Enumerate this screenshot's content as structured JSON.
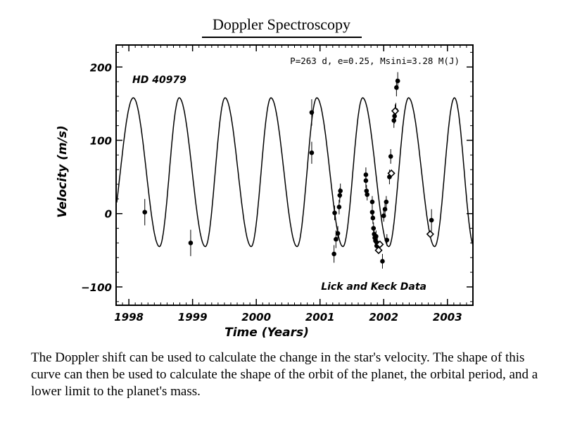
{
  "page": {
    "title": "Doppler Spectroscopy",
    "caption": "The Doppler shift can be used to calculate the change in the star's velocity. The shape of this curve can then be used to calculate the shape of the orbit of the planet, the orbital period, and a lower limit to the planet's mass."
  },
  "chart_data": {
    "type": "scatter",
    "star_label": "HD 40979",
    "fit_label": "P=263 d, e=0.25, Msini=3.28 M(J)",
    "data_source_label": "Lick and Keck Data",
    "xlabel": "Time (Years)",
    "ylabel": "Velocity (m/s)",
    "xlim": [
      1997.8,
      2003.4
    ],
    "ylim": [
      -125,
      230
    ],
    "x_ticks": [
      1998,
      1999,
      2000,
      2001,
      2002,
      2003
    ],
    "y_ticks": [
      -100,
      0,
      100,
      200
    ],
    "y_tick_labels": [
      "−100",
      "0",
      "100",
      "200"
    ],
    "model_curve": {
      "peaks": [
        1998.07,
        1998.79,
        1999.51,
        2000.23,
        2000.95,
        2001.67,
        2002.39,
        2003.11
      ],
      "troughs": [
        1998.48,
        1999.2,
        1999.92,
        2000.64,
        2001.36,
        2002.08,
        2002.8
      ],
      "peak_velocity": 158,
      "trough_velocity": -45
    },
    "series": [
      {
        "marker": "filled-circle",
        "points": [
          {
            "x": 1998.25,
            "y": 2,
            "err": 18
          },
          {
            "x": 1998.97,
            "y": -40,
            "err": 18
          },
          {
            "x": 2000.87,
            "y": 138,
            "err": 18
          },
          {
            "x": 2000.87,
            "y": 83,
            "err": 15
          },
          {
            "x": 2001.22,
            "y": -55,
            "err": 12
          },
          {
            "x": 2001.23,
            "y": 1,
            "err": 10
          },
          {
            "x": 2001.25,
            "y": -35,
            "err": 12
          },
          {
            "x": 2001.28,
            "y": -27,
            "err": 10
          },
          {
            "x": 2001.3,
            "y": 9,
            "err": 10
          },
          {
            "x": 2001.31,
            "y": 25,
            "err": 10
          },
          {
            "x": 2001.32,
            "y": 31,
            "err": 10
          },
          {
            "x": 2001.72,
            "y": 53,
            "err": 10
          },
          {
            "x": 2001.72,
            "y": 45,
            "err": 10
          },
          {
            "x": 2001.73,
            "y": 31,
            "err": 8
          },
          {
            "x": 2001.74,
            "y": 26,
            "err": 8
          },
          {
            "x": 2001.82,
            "y": 16,
            "err": 8
          },
          {
            "x": 2001.82,
            "y": 2,
            "err": 8
          },
          {
            "x": 2001.83,
            "y": -6,
            "err": 8
          },
          {
            "x": 2001.84,
            "y": -20,
            "err": 8
          },
          {
            "x": 2001.85,
            "y": -28,
            "err": 8
          },
          {
            "x": 2001.86,
            "y": -33,
            "err": 8
          },
          {
            "x": 2001.87,
            "y": -37,
            "err": 8
          },
          {
            "x": 2001.88,
            "y": -31,
            "err": 8
          },
          {
            "x": 2001.89,
            "y": -44,
            "err": 8
          },
          {
            "x": 2001.9,
            "y": -40,
            "err": 8
          },
          {
            "x": 2001.91,
            "y": -45,
            "err": 8
          },
          {
            "x": 2001.98,
            "y": -65,
            "err": 10
          },
          {
            "x": 2002.0,
            "y": -3,
            "err": 8
          },
          {
            "x": 2002.02,
            "y": 6,
            "err": 8
          },
          {
            "x": 2002.04,
            "y": 16,
            "err": 8
          },
          {
            "x": 2002.05,
            "y": -36,
            "err": 8
          },
          {
            "x": 2002.09,
            "y": 50,
            "err": 10
          },
          {
            "x": 2002.11,
            "y": 78,
            "err": 10
          },
          {
            "x": 2002.16,
            "y": 127,
            "err": 10
          },
          {
            "x": 2002.17,
            "y": 133,
            "err": 10
          },
          {
            "x": 2002.18,
            "y": 139,
            "err": 10
          },
          {
            "x": 2002.19,
            "y": 141,
            "err": 10
          },
          {
            "x": 2002.2,
            "y": 172,
            "err": 12
          },
          {
            "x": 2002.22,
            "y": 181,
            "err": 12
          },
          {
            "x": 2002.75,
            "y": -9,
            "err": 15
          }
        ]
      },
      {
        "marker": "open-diamond",
        "points": [
          {
            "x": 2001.92,
            "y": -50
          },
          {
            "x": 2001.94,
            "y": -42
          },
          {
            "x": 2002.12,
            "y": 55
          },
          {
            "x": 2002.18,
            "y": 140
          },
          {
            "x": 2002.73,
            "y": -28
          }
        ]
      }
    ],
    "grid": false
  }
}
